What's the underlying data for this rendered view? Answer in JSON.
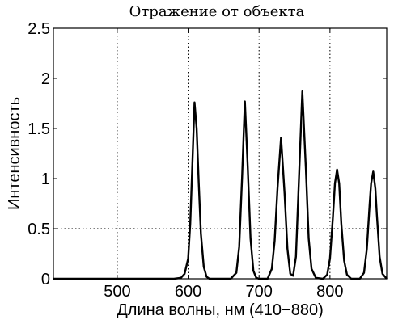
{
  "chart_data": {
    "type": "line",
    "title": "Отражение от объекта",
    "xlabel": "Длина волны, нм (410−880)",
    "ylabel": "Интенсивность",
    "xlim": [
      410,
      880
    ],
    "ylim": [
      0,
      2.5
    ],
    "xticks": [
      500,
      600,
      700,
      800
    ],
    "xtick_labels": [
      "500",
      "600",
      "700",
      "800"
    ],
    "yticks": [
      0,
      0.5,
      1,
      1.5,
      2,
      2.5
    ],
    "ytick_labels": [
      "0",
      "0.5",
      "1",
      "1.5",
      "2",
      "2.5"
    ],
    "grid": "dotted at x=500,600,700,800 and y=0.5",
    "peaks": [
      {
        "center": 609,
        "height": 1.76
      },
      {
        "center": 680,
        "height": 1.77
      },
      {
        "center": 731,
        "height": 1.41
      },
      {
        "center": 761,
        "height": 1.87
      },
      {
        "center": 810,
        "height": 1.09
      },
      {
        "center": 861,
        "height": 1.07
      }
    ],
    "series": [
      {
        "x": [
          410,
          580,
          590,
          595,
          600,
          603,
          606,
          609,
          612,
          615,
          618,
          622,
          626,
          630,
          660,
          668,
          672,
          676,
          680,
          684,
          688,
          692,
          696,
          700,
          712,
          718,
          722,
          726,
          731,
          736,
          740,
          744,
          748,
          752,
          756,
          761,
          766,
          770,
          774,
          780,
          790,
          796,
          800,
          804,
          807,
          810,
          813,
          816,
          820,
          824,
          830,
          842,
          848,
          852,
          856,
          858,
          861,
          864,
          866,
          870,
          874,
          880
        ],
        "y": [
          0,
          0,
          0.01,
          0.05,
          0.2,
          0.55,
          1.15,
          1.76,
          1.5,
          0.95,
          0.45,
          0.12,
          0.02,
          0,
          0,
          0.06,
          0.32,
          1.0,
          1.77,
          1.12,
          0.4,
          0.08,
          0.01,
          0,
          0,
          0.1,
          0.38,
          0.9,
          1.41,
          0.85,
          0.3,
          0.05,
          0.03,
          0.22,
          0.95,
          1.87,
          1.1,
          0.4,
          0.1,
          0.01,
          0,
          0.04,
          0.2,
          0.6,
          0.95,
          1.09,
          0.95,
          0.55,
          0.18,
          0.04,
          0,
          0,
          0.06,
          0.3,
          0.75,
          0.95,
          1.07,
          0.9,
          0.65,
          0.22,
          0.05,
          0
        ]
      }
    ]
  }
}
